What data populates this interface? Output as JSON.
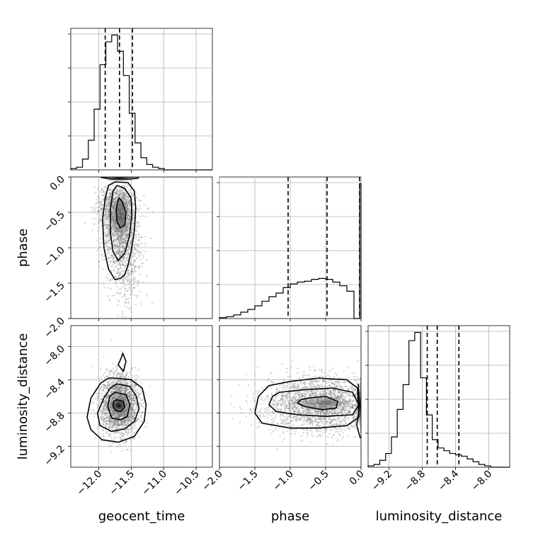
{
  "chart_data": {
    "type": "corner",
    "parameters": [
      "geocent_time",
      "phase",
      "luminosity_distance"
    ],
    "labels": {
      "geocent_time": "geocent_time",
      "phase": "phase",
      "luminosity_distance": "luminosity_distance"
    },
    "ranges": {
      "geocent_time": [
        -12.43,
        -10.25
      ],
      "phase": [
        -2.0,
        0.0
      ],
      "luminosity_distance": [
        -9.45,
        -7.75
      ]
    },
    "ticks": {
      "geocent_time": [
        -12.0,
        -11.5,
        -11.0,
        -10.5
      ],
      "phase": [
        -2.0,
        -1.5,
        -1.0,
        -0.5,
        0.0
      ],
      "luminosity_distance": [
        -9.2,
        -8.8,
        -8.4,
        -8.0
      ]
    },
    "tick_labels": {
      "geocent_time": [
        "−12.0",
        "−11.5",
        "−11.0",
        "−10.5"
      ],
      "phase": [
        "−2.0",
        "−1.5",
        "−1.0",
        "−0.5",
        "0.0"
      ],
      "luminosity_distance": [
        "−9.2",
        "−8.8",
        "−8.4",
        "−8.0"
      ]
    },
    "quantiles": {
      "geocent_time": [
        -11.9,
        -11.68,
        -11.48
      ],
      "phase": [
        -1.03,
        -0.48,
        -0.02
      ],
      "luminosity_distance": [
        -8.74,
        -8.62,
        -8.36
      ]
    },
    "histograms": {
      "geocent_time": {
        "edges": [
          -12.43,
          -12.34,
          -12.25,
          -12.16,
          -12.07,
          -11.98,
          -11.89,
          -11.8,
          -11.71,
          -11.62,
          -11.53,
          -11.44,
          -11.35,
          -11.26,
          -11.17,
          -11.08,
          -10.99,
          -10.9,
          -10.81,
          -10.72,
          -10.63,
          -10.54,
          -10.45,
          -10.36,
          -10.25
        ],
        "counts": [
          1,
          2,
          8,
          22,
          45,
          78,
          95,
          100,
          88,
          70,
          42,
          20,
          9,
          4,
          2,
          1,
          0,
          0,
          0,
          0,
          0,
          0,
          0,
          0
        ]
      },
      "phase": {
        "edges": [
          -2.0,
          -1.9,
          -1.8,
          -1.7,
          -1.6,
          -1.5,
          -1.4,
          -1.3,
          -1.2,
          -1.1,
          -1.0,
          -0.9,
          -0.8,
          -0.7,
          -0.6,
          -0.5,
          -0.4,
          -0.3,
          -0.2,
          -0.1,
          -0.02,
          0.0
        ],
        "counts": [
          0.5,
          1,
          2,
          3.5,
          5,
          7,
          9.5,
          12,
          14,
          17,
          19,
          20,
          20.5,
          21.5,
          22,
          21.5,
          20,
          18,
          15,
          0,
          74
        ]
      },
      "luminosity_distance": {
        "edges": [
          -9.45,
          -9.38,
          -9.31,
          -9.24,
          -9.17,
          -9.1,
          -9.03,
          -8.96,
          -8.89,
          -8.82,
          -8.75,
          -8.68,
          -8.61,
          -8.54,
          -8.47,
          -8.4,
          -8.33,
          -8.26,
          -8.19,
          -8.12,
          -8.05,
          -7.98,
          -7.91,
          -7.84,
          -7.75
        ],
        "counts": [
          1,
          2,
          5,
          10,
          22,
          42,
          60,
          92,
          98,
          65,
          38,
          20,
          14,
          12,
          10,
          9,
          8,
          6,
          4,
          2,
          1,
          0,
          0,
          0
        ]
      }
    },
    "contours_2d": {
      "phase_vs_geocent_time": [
        {
          "x": [
            -11.68,
            -11.64,
            -11.58,
            -11.6,
            -11.67,
            -11.72,
            -11.73,
            -11.7
          ],
          "y": [
            -0.3,
            -0.35,
            -0.5,
            -0.68,
            -0.72,
            -0.62,
            -0.45,
            -0.32
          ]
        },
        {
          "x": [
            -11.72,
            -11.6,
            -11.5,
            -11.49,
            -11.53,
            -11.6,
            -11.7,
            -11.78,
            -11.82,
            -11.82,
            -11.78
          ],
          "y": [
            -0.12,
            -0.16,
            -0.3,
            -0.55,
            -0.85,
            -1.08,
            -1.18,
            -1.05,
            -0.8,
            -0.45,
            -0.2
          ]
        },
        {
          "x": [
            -11.75,
            -11.55,
            -11.45,
            -11.43,
            -11.45,
            -11.5,
            -11.55,
            -11.6,
            -11.66,
            -11.75,
            -11.85,
            -11.92,
            -11.94,
            -11.9,
            -11.85
          ],
          "y": [
            -0.07,
            -0.08,
            -0.2,
            -0.45,
            -0.75,
            -1.05,
            -1.25,
            -1.38,
            -1.43,
            -1.45,
            -1.3,
            -1.0,
            -0.6,
            -0.3,
            -0.12
          ]
        },
        {
          "x": [
            -11.94,
            -11.8,
            -11.55,
            -11.4,
            -11.38,
            -11.5,
            -11.75,
            -11.95,
            -11.96
          ],
          "y": [
            -0.01,
            -0.03,
            -0.03,
            -0.02,
            0.0,
            0.0,
            0.0,
            0.0,
            -0.01
          ]
        }
      ],
      "luminosity_distance_vs_geocent_time": [
        {
          "x": [
            -11.72,
            -11.62,
            -11.6,
            -11.66,
            -11.74,
            -11.78,
            -11.77
          ],
          "y": [
            -8.64,
            -8.66,
            -8.73,
            -8.78,
            -8.77,
            -8.72,
            -8.66
          ]
        },
        {
          "x": [
            -11.75,
            -11.58,
            -11.52,
            -11.56,
            -11.66,
            -11.8,
            -11.86,
            -11.83
          ],
          "y": [
            -8.55,
            -8.58,
            -8.7,
            -8.84,
            -8.88,
            -8.86,
            -8.72,
            -8.6
          ]
        },
        {
          "x": [
            -11.72,
            -11.52,
            -11.42,
            -11.38,
            -11.45,
            -11.6,
            -11.8,
            -11.98,
            -12.02,
            -11.92,
            -11.82
          ],
          "y": [
            -8.45,
            -8.48,
            -8.6,
            -8.75,
            -8.9,
            -8.99,
            -9.02,
            -8.95,
            -8.8,
            -8.62,
            -8.5
          ]
        },
        {
          "x": [
            -11.75,
            -11.5,
            -11.33,
            -11.27,
            -11.3,
            -11.45,
            -11.7,
            -11.95,
            -12.12,
            -12.18,
            -12.12,
            -11.97,
            -11.85
          ],
          "y": [
            -8.38,
            -8.4,
            -8.5,
            -8.7,
            -8.9,
            -9.08,
            -9.15,
            -9.12,
            -9.0,
            -8.85,
            -8.62,
            -8.44,
            -8.38
          ]
        },
        {
          "x": [
            -11.63,
            -11.58,
            -11.62,
            -11.7,
            -11.65
          ],
          "y": [
            -8.08,
            -8.18,
            -8.3,
            -8.22,
            -8.13
          ]
        }
      ],
      "luminosity_distance_vs_phase": [
        {
          "x": [
            -0.75,
            -0.5,
            -0.33,
            -0.35,
            -0.55,
            -0.8,
            -0.9,
            -0.85
          ],
          "y": [
            -8.62,
            -8.6,
            -8.66,
            -8.74,
            -8.76,
            -8.72,
            -8.68,
            -8.64
          ]
        },
        {
          "x": [
            -1.15,
            -0.8,
            -0.4,
            -0.12,
            -0.03,
            -0.12,
            -0.5,
            -0.9,
            -1.2,
            -1.3,
            -1.25
          ],
          "y": [
            -8.55,
            -8.52,
            -8.5,
            -8.55,
            -8.7,
            -8.82,
            -8.84,
            -8.82,
            -8.78,
            -8.7,
            -8.6
          ]
        },
        {
          "x": [
            -1.3,
            -1.0,
            -0.6,
            -0.2,
            -0.05,
            -0.03,
            -0.2,
            -0.6,
            -1.0,
            -1.4,
            -1.5,
            -1.45
          ],
          "y": [
            -8.47,
            -8.42,
            -8.38,
            -8.4,
            -8.5,
            -8.85,
            -8.95,
            -8.98,
            -8.98,
            -8.92,
            -8.8,
            -8.6
          ]
        },
        {
          "x": [
            -0.04,
            -0.02,
            -0.06,
            -0.01
          ],
          "y": [
            -8.45,
            -8.7,
            -8.95,
            -9.1
          ]
        }
      ]
    }
  }
}
